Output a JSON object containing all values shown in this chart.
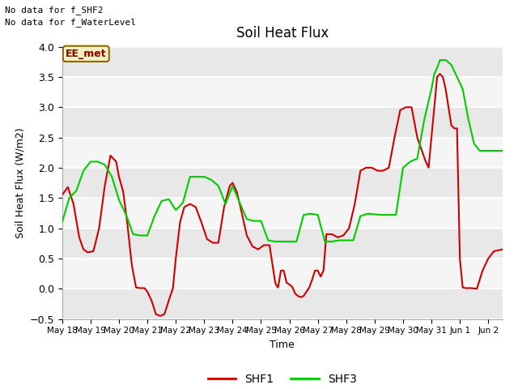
{
  "title": "Soil Heat Flux",
  "ylabel": "Soil Heat Flux (W/m2)",
  "xlabel": "Time",
  "ylim": [
    -0.5,
    4.0
  ],
  "yticks": [
    -0.5,
    0.0,
    0.5,
    1.0,
    1.5,
    2.0,
    2.5,
    3.0,
    3.5,
    4.0
  ],
  "xtick_labels": [
    "May 18",
    "May 19",
    "May 20",
    "May 21",
    "May 22",
    "May 23",
    "May 24",
    "May 25",
    "May 26",
    "May 27",
    "May 28",
    "May 29",
    "May 30",
    "May 31",
    "Jun 1",
    "Jun 2"
  ],
  "annotations": [
    "No data for f_SHF2",
    "No data for f_WaterLevel"
  ],
  "box_label": "EE_met",
  "shf1_color": "#cc0000",
  "shf3_color": "#00cc00",
  "fig_bg": "#ffffff",
  "plot_bg": "#e8e8e8",
  "band_color1": "#e8e8e8",
  "band_color2": "#f5f5f5",
  "shf1_x": [
    0,
    0.2,
    0.4,
    0.6,
    0.75,
    0.9,
    1.1,
    1.3,
    1.5,
    1.7,
    1.9,
    2.0,
    2.15,
    2.3,
    2.45,
    2.6,
    2.75,
    2.9,
    3.0,
    3.15,
    3.3,
    3.45,
    3.6,
    3.75,
    3.9,
    4.0,
    4.15,
    4.3,
    4.5,
    4.7,
    4.9,
    5.1,
    5.3,
    5.5,
    5.7,
    5.9,
    6.0,
    6.15,
    6.3,
    6.5,
    6.7,
    6.9,
    7.1,
    7.3,
    7.5,
    7.55,
    7.6,
    7.7,
    7.8,
    7.9,
    8.0,
    8.1,
    8.2,
    8.3,
    8.4,
    8.5,
    8.6,
    8.7,
    8.8,
    8.9,
    9.0,
    9.1,
    9.2,
    9.3,
    9.5,
    9.7,
    9.9,
    10.1,
    10.3,
    10.5,
    10.7,
    10.9,
    11.1,
    11.3,
    11.5,
    11.7,
    11.9,
    12.1,
    12.3,
    12.5,
    12.65,
    12.8,
    12.9,
    13.0,
    13.1,
    13.2,
    13.3,
    13.4,
    13.5,
    13.6,
    13.7,
    13.75,
    13.8,
    13.85,
    13.9,
    14.0,
    14.1,
    14.2,
    14.4,
    14.6,
    14.8,
    15.0,
    15.2,
    15.5
  ],
  "shf1_y": [
    1.55,
    1.68,
    1.4,
    0.85,
    0.65,
    0.6,
    0.62,
    1.0,
    1.7,
    2.2,
    2.1,
    1.85,
    1.6,
    1.05,
    0.4,
    0.02,
    0.01,
    0.01,
    -0.05,
    -0.2,
    -0.42,
    -0.45,
    -0.42,
    -0.2,
    0.01,
    0.5,
    1.1,
    1.35,
    1.4,
    1.35,
    1.1,
    0.82,
    0.76,
    0.76,
    1.35,
    1.7,
    1.75,
    1.6,
    1.3,
    0.88,
    0.7,
    0.65,
    0.72,
    0.72,
    0.1,
    0.05,
    0.02,
    0.3,
    0.3,
    0.1,
    0.07,
    0.03,
    -0.08,
    -0.12,
    -0.14,
    -0.12,
    -0.05,
    0.02,
    0.15,
    0.3,
    0.3,
    0.2,
    0.3,
    0.9,
    0.9,
    0.85,
    0.88,
    1.0,
    1.4,
    1.95,
    2.0,
    2.0,
    1.95,
    1.95,
    2.0,
    2.5,
    2.95,
    3.0,
    3.0,
    2.5,
    2.3,
    2.1,
    2.0,
    2.5,
    3.0,
    3.5,
    3.55,
    3.5,
    3.3,
    3.0,
    2.7,
    2.68,
    2.65,
    2.65,
    2.65,
    0.5,
    0.02,
    0.01,
    0.01,
    0.0,
    0.3,
    0.5,
    0.62,
    0.65
  ],
  "shf3_x": [
    0,
    0.25,
    0.5,
    0.75,
    1.0,
    1.25,
    1.5,
    1.75,
    2.0,
    2.25,
    2.5,
    2.75,
    3.0,
    3.25,
    3.5,
    3.75,
    4.0,
    4.25,
    4.5,
    4.75,
    5.0,
    5.25,
    5.5,
    5.75,
    6.0,
    6.25,
    6.5,
    6.75,
    7.0,
    7.25,
    7.5,
    7.75,
    8.0,
    8.25,
    8.5,
    8.75,
    9.0,
    9.25,
    9.5,
    9.75,
    10.0,
    10.25,
    10.5,
    10.75,
    11.0,
    11.25,
    11.5,
    11.75,
    12.0,
    12.25,
    12.5,
    12.75,
    13.0,
    13.1,
    13.2,
    13.3,
    13.5,
    13.7,
    13.9,
    14.1,
    14.3,
    14.5,
    14.7,
    14.9,
    15.1,
    15.3,
    15.5
  ],
  "shf3_y": [
    1.1,
    1.5,
    1.62,
    1.95,
    2.1,
    2.1,
    2.05,
    1.85,
    1.47,
    1.22,
    0.9,
    0.88,
    0.88,
    1.2,
    1.45,
    1.48,
    1.3,
    1.42,
    1.85,
    1.85,
    1.85,
    1.8,
    1.7,
    1.4,
    1.7,
    1.42,
    1.15,
    1.12,
    1.12,
    0.8,
    0.78,
    0.78,
    0.78,
    0.78,
    1.22,
    1.24,
    1.22,
    0.78,
    0.78,
    0.8,
    0.8,
    0.8,
    1.2,
    1.24,
    1.23,
    1.22,
    1.22,
    1.22,
    2.0,
    2.1,
    2.15,
    2.8,
    3.3,
    3.55,
    3.65,
    3.78,
    3.78,
    3.7,
    3.5,
    3.3,
    2.8,
    2.4,
    2.28,
    2.28,
    2.28,
    2.28,
    2.28
  ]
}
